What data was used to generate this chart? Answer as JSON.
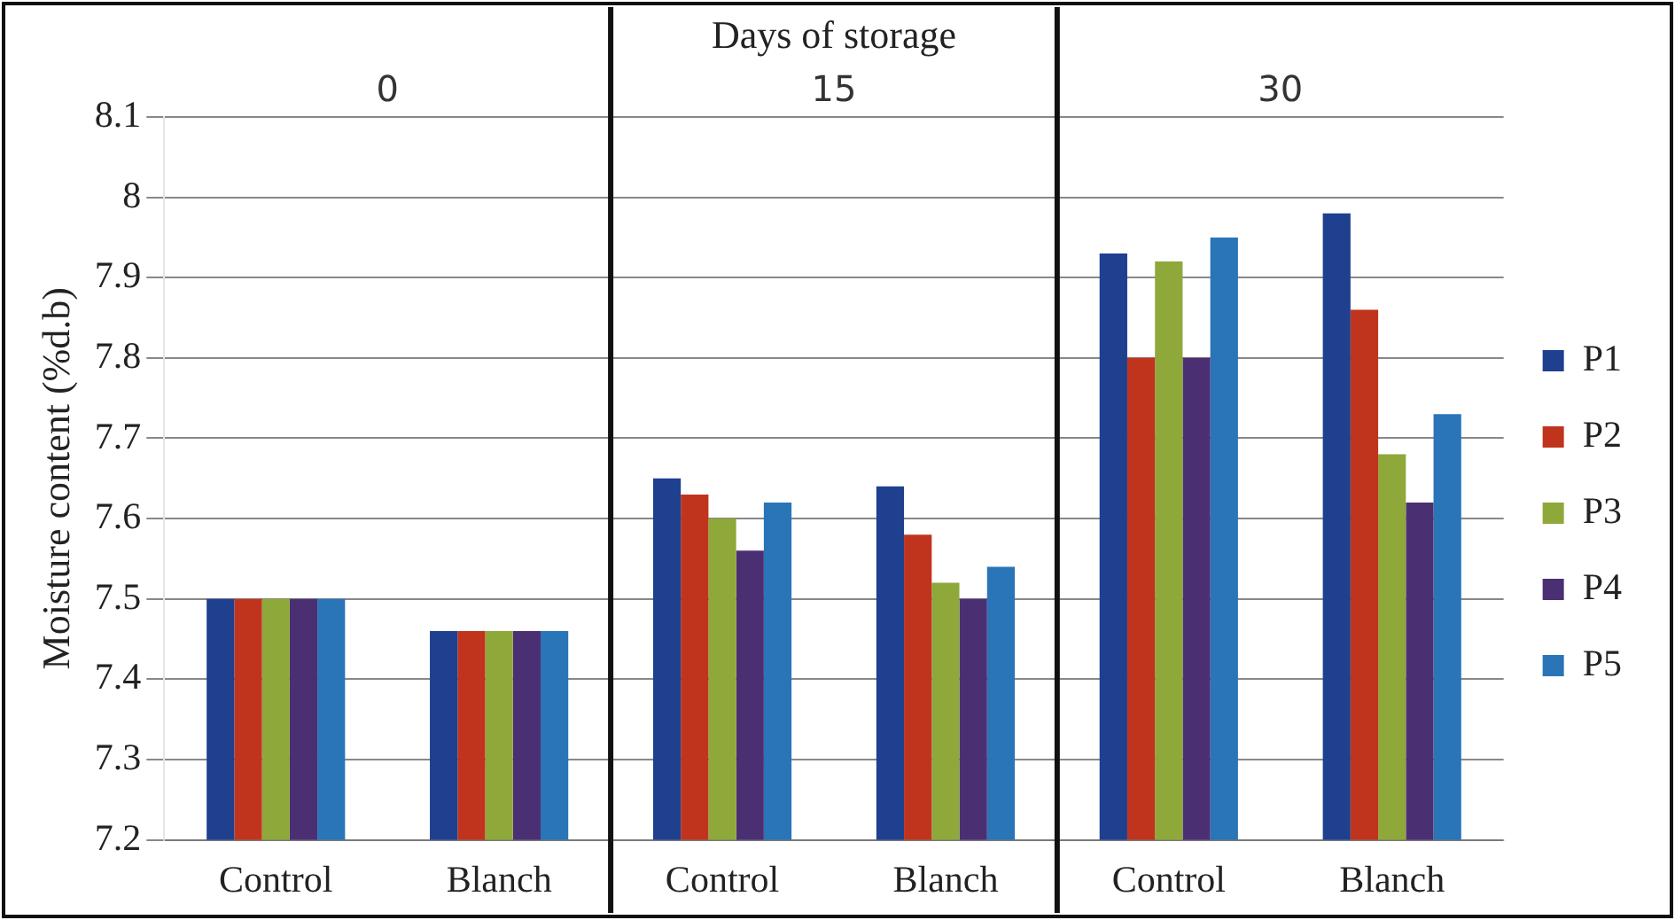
{
  "chart_data": {
    "type": "bar",
    "title": "Days of storage",
    "categories": [
      "Control",
      "Blanch",
      "Control",
      "Blanch",
      "Control",
      "Blanch"
    ],
    "annotations": [
      "0",
      "15",
      "30"
    ],
    "ylabel": "Moisture content (%d.b)",
    "ylim": [
      7.2,
      8.1
    ],
    "yticks": [
      7.2,
      7.3,
      7.4,
      7.5,
      7.6,
      7.7,
      7.8,
      7.9,
      8,
      8.1
    ],
    "grid": "y",
    "legend": "right",
    "series": [
      {
        "name": "P1",
        "color": "#1f3f8f",
        "values": [
          7.5,
          7.46,
          7.65,
          7.64,
          7.93,
          7.98
        ]
      },
      {
        "name": "P2",
        "color": "#c0341d",
        "values": [
          7.5,
          7.46,
          7.63,
          7.58,
          7.8,
          7.86
        ]
      },
      {
        "name": "P3",
        "color": "#8fa83a",
        "values": [
          7.5,
          7.46,
          7.6,
          7.52,
          7.92,
          7.68
        ]
      },
      {
        "name": "P4",
        "color": "#4b2f73",
        "values": [
          7.5,
          7.46,
          7.56,
          7.5,
          7.8,
          7.62
        ]
      },
      {
        "name": "P5",
        "color": "#2a74b8",
        "values": [
          7.5,
          7.46,
          7.62,
          7.54,
          7.95,
          7.73
        ]
      }
    ]
  }
}
